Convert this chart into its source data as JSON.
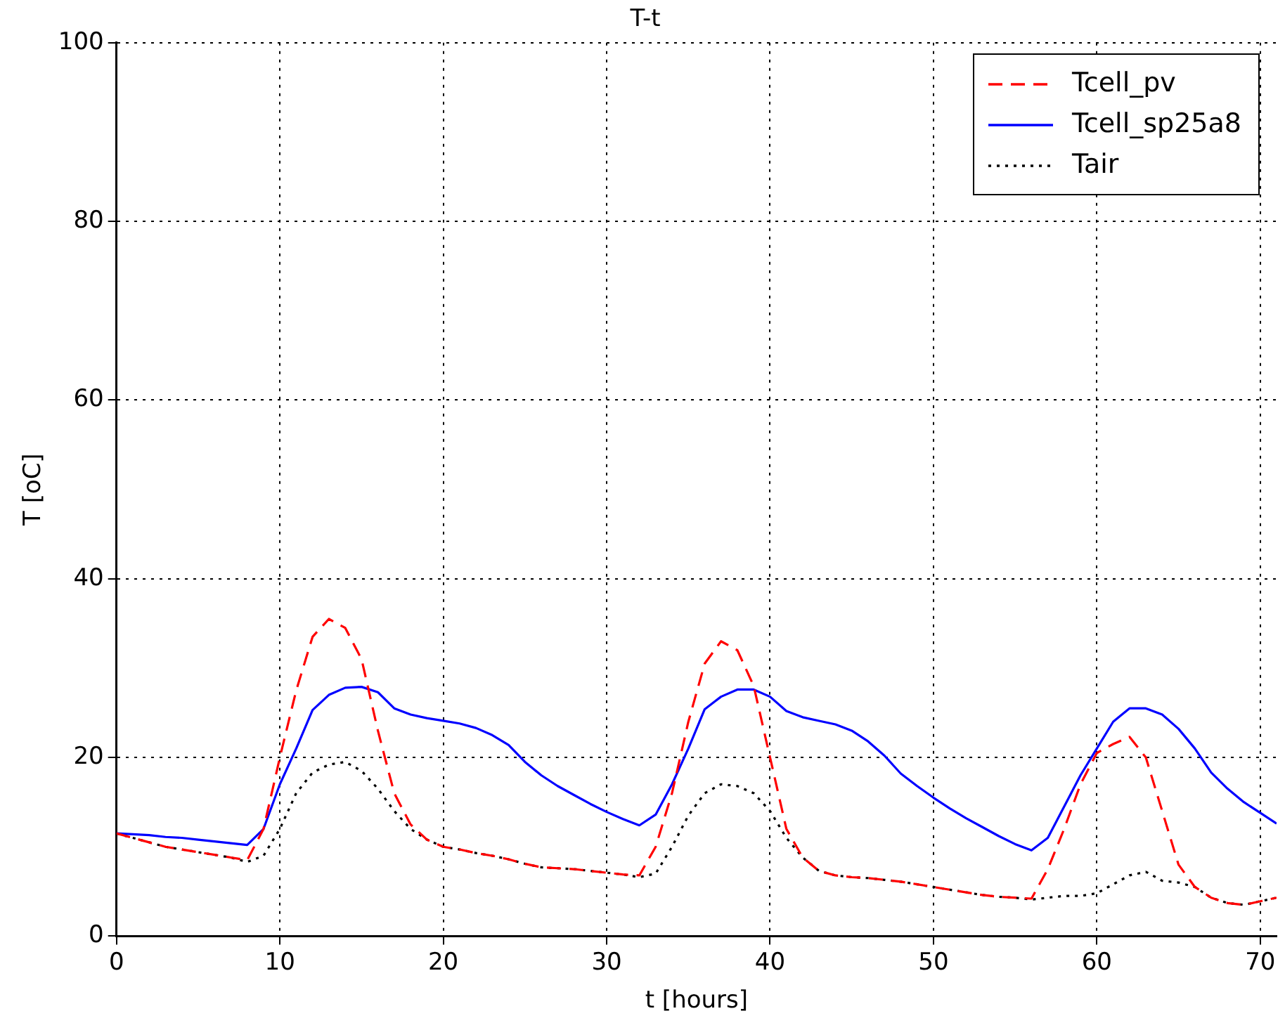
{
  "chart_data": {
    "type": "line",
    "title": "T-t",
    "xlabel": "t [hours]",
    "ylabel": "T [oC]",
    "x": [
      0,
      1,
      2,
      3,
      4,
      5,
      6,
      7,
      8,
      9,
      10,
      11,
      12,
      13,
      14,
      15,
      16,
      17,
      18,
      19,
      20,
      21,
      22,
      23,
      24,
      25,
      26,
      27,
      28,
      29,
      30,
      31,
      32,
      33,
      34,
      35,
      36,
      37,
      38,
      39,
      40,
      41,
      42,
      43,
      44,
      45,
      46,
      47,
      48,
      49,
      50,
      51,
      52,
      53,
      54,
      55,
      56,
      57,
      58,
      59,
      60,
      61,
      62,
      63,
      64,
      65,
      66,
      67,
      68,
      69,
      70,
      71
    ],
    "series": [
      {
        "name": "Tcell_pv",
        "color": "#ff0000",
        "line_style": "dashed",
        "values": [
          11.5,
          11,
          10.5,
          10,
          9.7,
          9.4,
          9.1,
          8.8,
          8.5,
          12,
          20,
          27.5,
          33.5,
          35.5,
          34.5,
          31,
          23,
          16,
          12.5,
          10.8,
          10,
          9.7,
          9.3,
          9,
          8.6,
          8.1,
          7.7,
          7.6,
          7.5,
          7.3,
          7.1,
          6.9,
          6.8,
          10,
          16,
          24,
          30.5,
          33,
          32,
          28,
          20,
          12,
          8.8,
          7.3,
          6.8,
          6.6,
          6.5,
          6.3,
          6.1,
          5.8,
          5.5,
          5.2,
          4.9,
          4.6,
          4.4,
          4.3,
          4.2,
          7.5,
          12,
          17,
          20.5,
          21.5,
          22.3,
          20,
          14,
          8,
          5.5,
          4.3,
          3.7,
          3.5,
          3.9,
          4.3
        ]
      },
      {
        "name": "Tcell_sp25a8",
        "color": "#0000ff",
        "line_style": "solid",
        "values": [
          11.5,
          11.4,
          11.3,
          11.1,
          11,
          10.8,
          10.6,
          10.4,
          10.2,
          12,
          17,
          21,
          25.3,
          27,
          27.8,
          27.9,
          27.3,
          25.5,
          24.8,
          24.4,
          24.1,
          23.8,
          23.3,
          22.5,
          21.4,
          19.5,
          18,
          16.8,
          15.8,
          14.8,
          13.9,
          13.1,
          12.4,
          13.6,
          17,
          21,
          25.4,
          26.8,
          27.6,
          27.6,
          26.8,
          25.2,
          24.5,
          24.1,
          23.7,
          23,
          21.8,
          20.2,
          18.2,
          16.8,
          15.5,
          14.3,
          13.2,
          12.2,
          11.2,
          10.3,
          9.6,
          11,
          14.5,
          18,
          21,
          24,
          25.5,
          25.5,
          24.8,
          23.2,
          21,
          18.3,
          16.5,
          15,
          13.8,
          12.6
        ]
      },
      {
        "name": "Tair",
        "color": "#000000",
        "line_style": "dotted",
        "values": [
          11.5,
          11,
          10.5,
          10,
          9.7,
          9.4,
          9.1,
          8.8,
          8.3,
          9,
          12,
          16,
          18.3,
          19.2,
          19.5,
          18.5,
          16.5,
          14,
          12,
          10.8,
          10,
          9.7,
          9.3,
          9,
          8.6,
          8.1,
          7.7,
          7.6,
          7.5,
          7.3,
          7.1,
          6.9,
          6.6,
          7,
          10,
          13.5,
          16,
          17,
          16.8,
          16,
          14,
          11,
          8.8,
          7.3,
          6.8,
          6.6,
          6.5,
          6.3,
          6.1,
          5.8,
          5.5,
          5.2,
          4.9,
          4.6,
          4.4,
          4.3,
          4.1,
          4.3,
          4.5,
          4.5,
          4.8,
          5.8,
          6.8,
          7.2,
          6.2,
          6,
          5.5,
          4.3,
          3.7,
          3.5,
          3.9,
          4.3
        ]
      }
    ],
    "xlim": [
      0,
      71
    ],
    "xticks": [
      0,
      10,
      20,
      30,
      40,
      50,
      60,
      70
    ],
    "ylim": [
      0,
      100
    ],
    "yticks": [
      0,
      20,
      40,
      60,
      80,
      100
    ],
    "grid": true,
    "legend": "top right",
    "marker": "none"
  }
}
